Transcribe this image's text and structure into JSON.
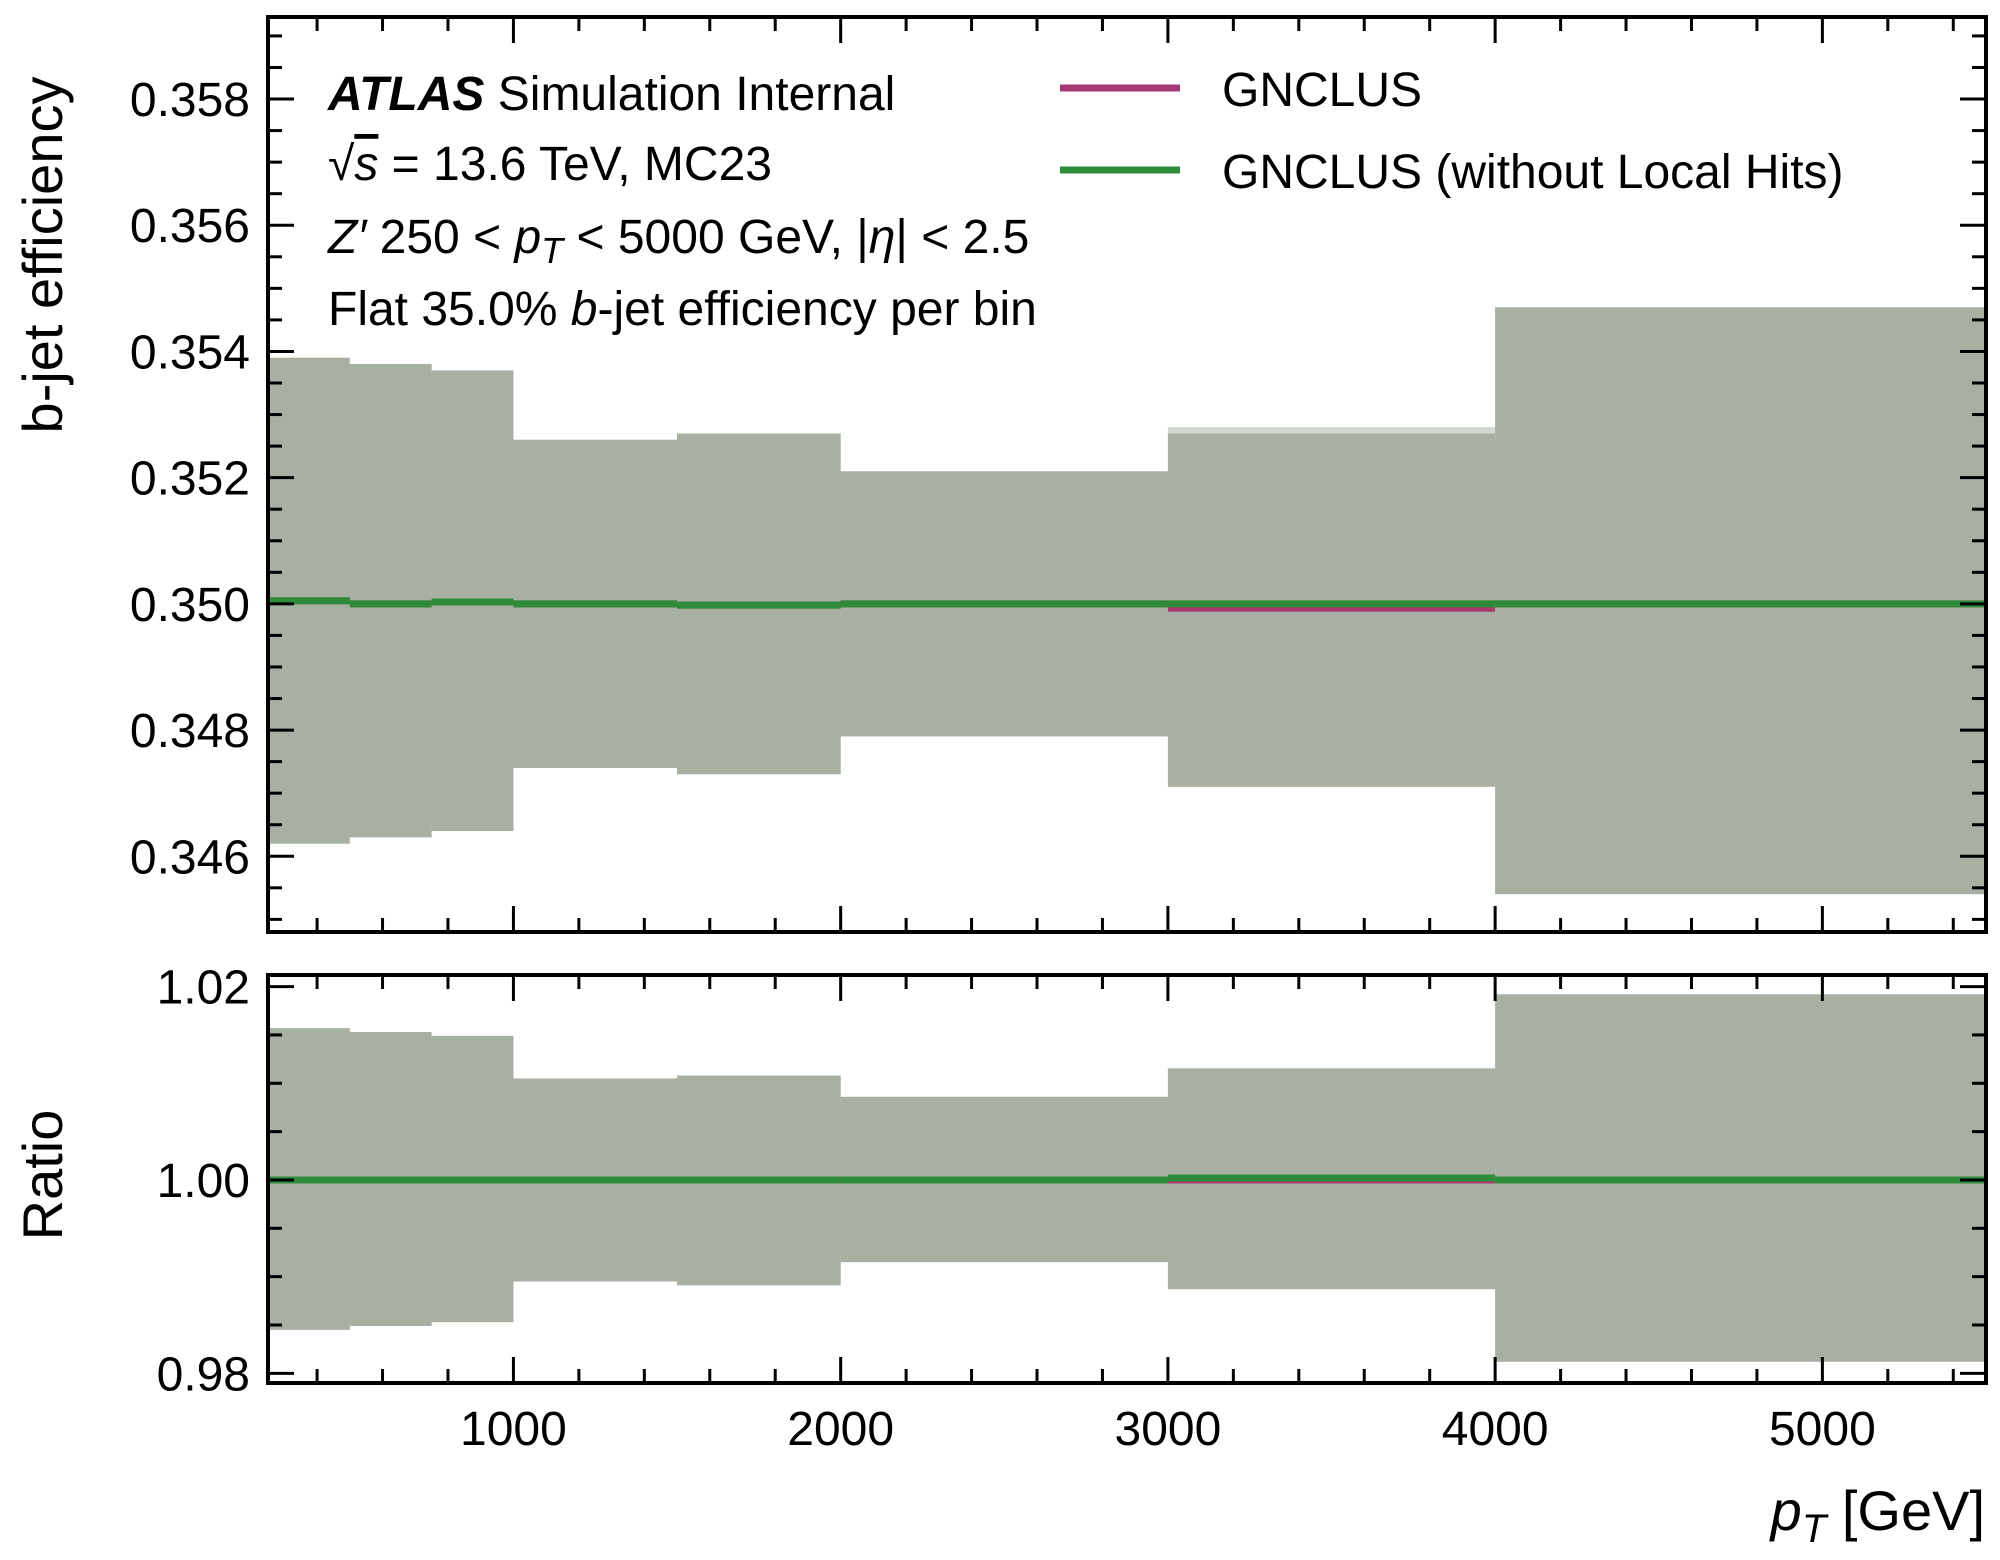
{
  "chart_data": [
    {
      "type": "line",
      "panel": "main",
      "ylabel": "b-jet efficiency",
      "xlim": [
        250,
        5500
      ],
      "ylim": [
        0.3448,
        0.3593
      ],
      "ytick_values": [
        0.346,
        0.348,
        0.35,
        0.352,
        0.354,
        0.356,
        0.358
      ],
      "ytick_labels": [
        "0.346",
        "0.348",
        "0.350",
        "0.352",
        "0.354",
        "0.356",
        "0.358"
      ],
      "bins": [
        [
          250,
          500
        ],
        [
          500,
          750
        ],
        [
          750,
          1000
        ],
        [
          1000,
          1500
        ],
        [
          1500,
          2000
        ],
        [
          2000,
          3000
        ],
        [
          3000,
          4000
        ],
        [
          4000,
          5500
        ]
      ],
      "series": [
        {
          "name": "GNCLUS",
          "color": "#a83a72",
          "values": [
            0.35005,
            0.35,
            0.35003,
            0.35,
            0.34998,
            0.35,
            0.34993,
            0.35
          ],
          "band_low": [
            0.3462,
            0.3463,
            0.3464,
            0.3474,
            0.3473,
            0.3479,
            0.3471,
            0.3454
          ],
          "band_high": [
            0.3539,
            0.3538,
            0.3537,
            0.3526,
            0.3527,
            0.3521,
            0.3527,
            0.3547
          ]
        },
        {
          "name": "GNCLUS (without Local Hits)",
          "color": "#2e8b3a",
          "values": [
            0.35005,
            0.35,
            0.35003,
            0.35,
            0.34998,
            0.35,
            0.35,
            0.35
          ],
          "band_low": [
            0.3462,
            0.3463,
            0.3464,
            0.3474,
            0.3473,
            0.3479,
            0.3472,
            0.3454
          ],
          "band_high": [
            0.3539,
            0.3538,
            0.3537,
            0.3526,
            0.3527,
            0.3521,
            0.3528,
            0.3547
          ]
        }
      ]
    },
    {
      "type": "line",
      "panel": "ratio",
      "ylabel": "Ratio",
      "xlabel_prefix": "p",
      "xlabel_sub": "T",
      "xlabel_unit": " [GeV]",
      "xlim": [
        250,
        5500
      ],
      "ylim": [
        0.979,
        1.0212
      ],
      "ytick_values": [
        0.98,
        1.0,
        1.02
      ],
      "ytick_labels": [
        "0.98",
        "1.00",
        "1.02"
      ],
      "xtick_values": [
        1000,
        2000,
        3000,
        4000,
        5000
      ],
      "xtick_labels": [
        "1000",
        "2000",
        "3000",
        "4000",
        "5000"
      ],
      "bins": [
        [
          250,
          500
        ],
        [
          500,
          750
        ],
        [
          750,
          1000
        ],
        [
          1000,
          1500
        ],
        [
          1500,
          2000
        ],
        [
          2000,
          3000
        ],
        [
          3000,
          4000
        ],
        [
          4000,
          5500
        ]
      ],
      "series": [
        {
          "name": "GNCLUS",
          "color": "#a83a72",
          "values": [
            1.0,
            1.0,
            1.0,
            1.0,
            1.0,
            1.0,
            1.0,
            1.0
          ],
          "band_low": [
            0.9845,
            0.9849,
            0.9853,
            0.9895,
            0.9891,
            0.9915,
            0.9887,
            0.9812
          ],
          "band_high": [
            1.0157,
            1.0153,
            1.0149,
            1.0105,
            1.0108,
            1.0086,
            1.0115,
            1.0192
          ]
        },
        {
          "name": "GNCLUS (without Local Hits)",
          "color": "#2e8b3a",
          "values": [
            1.0,
            1.0,
            1.0,
            1.0,
            1.0,
            1.0,
            1.0002,
            1.0
          ],
          "band_low": [
            0.9845,
            0.9849,
            0.9853,
            0.9895,
            0.9891,
            0.9915,
            0.9888,
            0.9812
          ],
          "band_high": [
            1.0157,
            1.0153,
            1.0149,
            1.0105,
            1.0108,
            1.0086,
            1.0116,
            1.0192
          ]
        }
      ]
    }
  ],
  "band_color": "#a8b0a3",
  "info": {
    "experiment": "ATLAS",
    "status": "Simulation Internal",
    "sqrt_symbol": "√",
    "s_symbol": "s",
    "energy": " = 13.6 TeV, MC23",
    "process_symbol": "Z′",
    "pt_range_lo": " 250 < ",
    "pt_symbol": "p",
    "pt_sub": "T",
    "pt_range_hi": " < 5000 GeV, |",
    "eta_symbol": "η",
    "eta_cut": "| < 2.5",
    "wp_prefix": "Flat 35.0% ",
    "wp_b": "b",
    "wp_suffix": "-jet efficiency per bin"
  },
  "legend": {
    "placement": "top-center",
    "entries": [
      "GNCLUS",
      "GNCLUS (without Local Hits)"
    ]
  }
}
